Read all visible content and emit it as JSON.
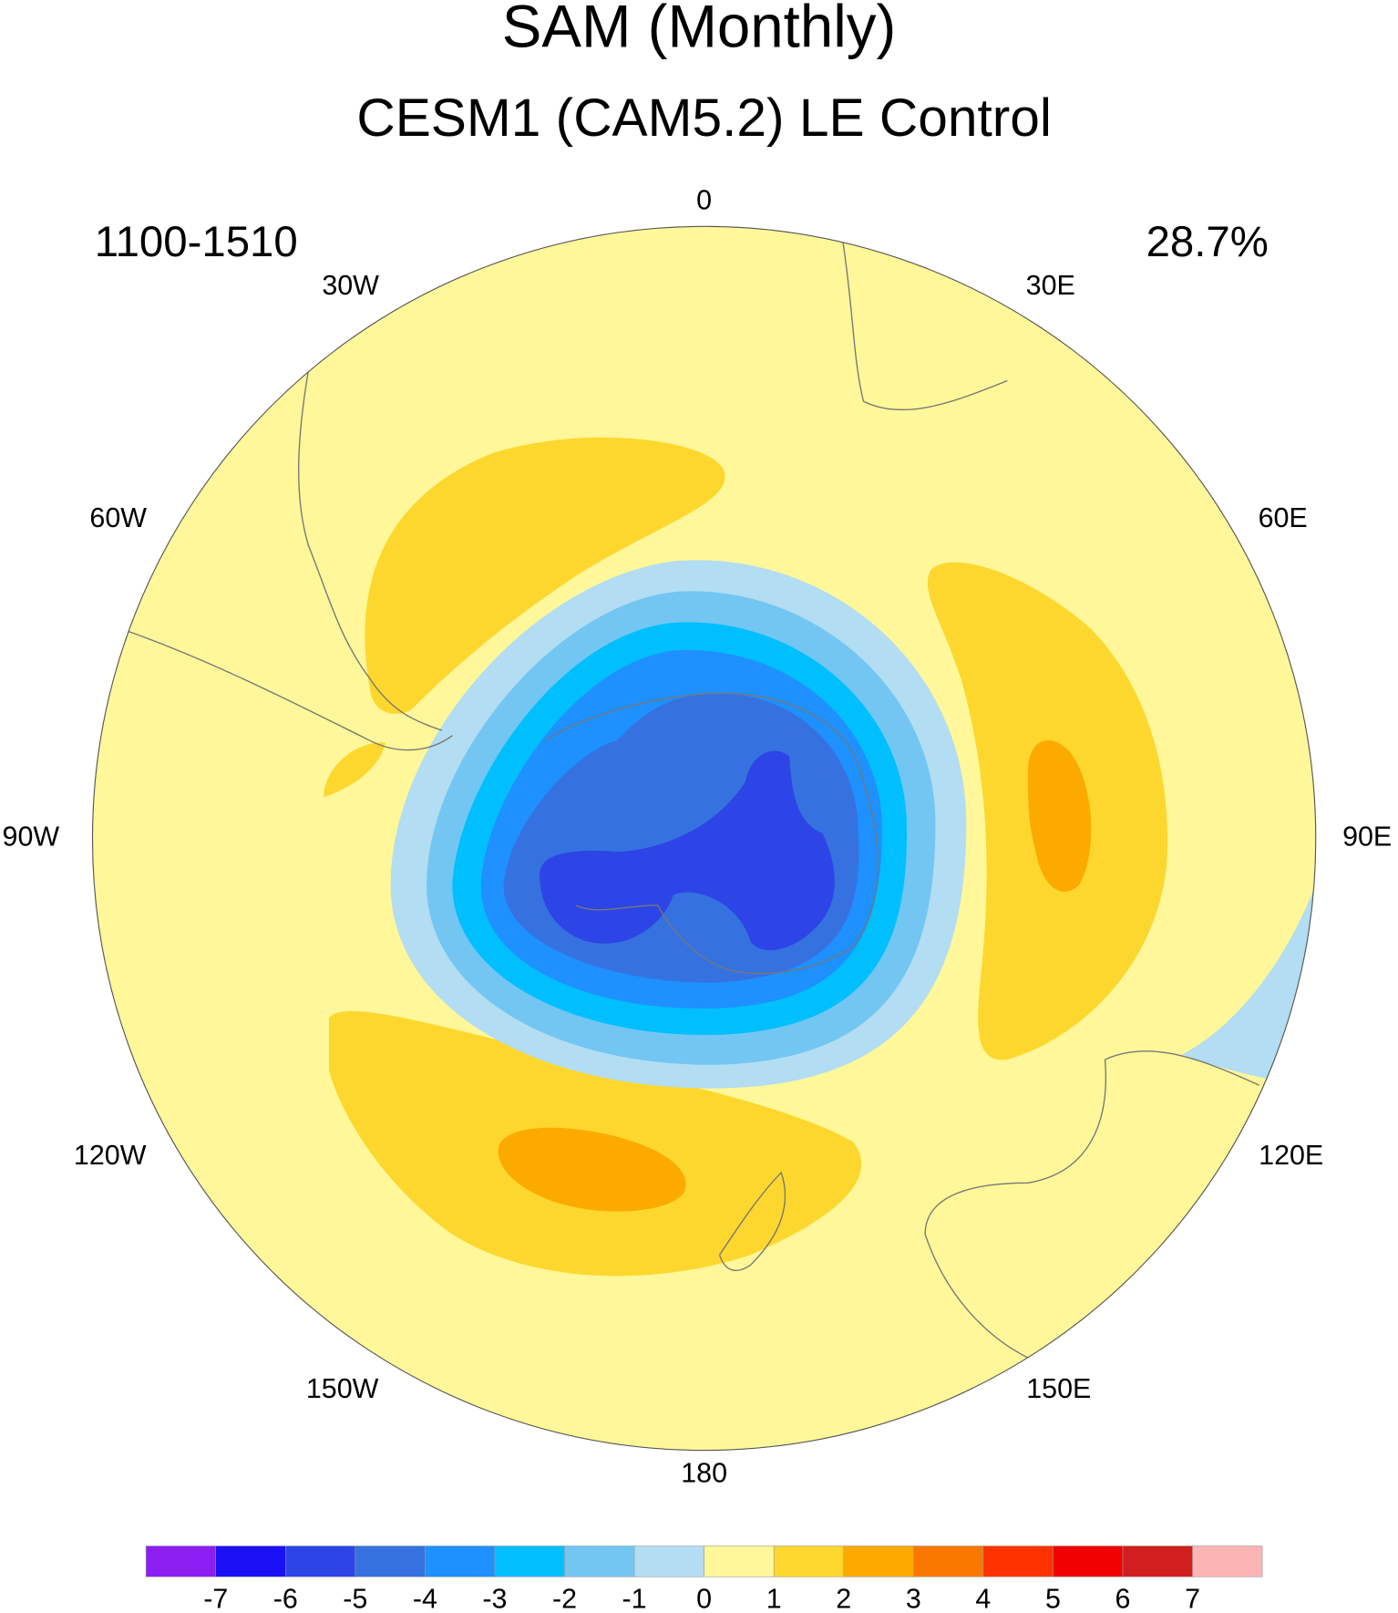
{
  "chart_data": {
    "type": "contour-map",
    "title": "SAM (Monthly)",
    "subtitle": "CESM1 (CAM5.2) LE Control",
    "left_annotation": "1100-1510",
    "right_annotation": "28.7%",
    "longitude_labels": [
      "0",
      "30E",
      "60E",
      "90E",
      "120E",
      "150E",
      "180",
      "150W",
      "120W",
      "90W",
      "60W",
      "30W"
    ],
    "colorbar": {
      "colors": [
        "#8c1ef2",
        "#1a0ff5",
        "#2d44e6",
        "#3572e0",
        "#1e90ff",
        "#00bfff",
        "#73c6f2",
        "#b2ddf2",
        "#fff799",
        "#fdd72d",
        "#fdaa00",
        "#fa7800",
        "#ff3200",
        "#f00000",
        "#d21e1e",
        "#fdb4b4"
      ],
      "ticks": [
        -7,
        -6,
        -5,
        -4,
        -3,
        -2,
        -1,
        0,
        1,
        2,
        3,
        4,
        5,
        6,
        7
      ]
    }
  }
}
